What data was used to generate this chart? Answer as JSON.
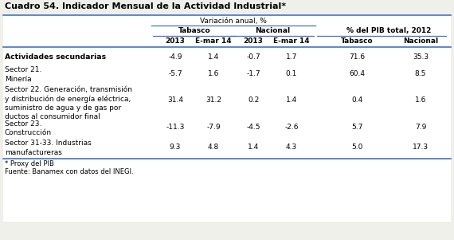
{
  "title": "Cuadro 54. Indicador Mensual de la Actividad Industrial*",
  "header1": "Variación anual, %",
  "header2_tabasco": "Tabasco",
  "header2_nacional": "Nacional",
  "header2_pib": "% del PIB total, 2012",
  "col_headers": [
    "2013",
    "E-mar 14",
    "2013",
    "E-mar 14",
    "Tabasco",
    "Nacional"
  ],
  "rows": [
    {
      "label": "Actividades secundarias",
      "bold": true,
      "values": [
        "-4.9",
        "1.4",
        "-0.7",
        "1.7",
        "71.6",
        "35.3"
      ],
      "label_lines": 1
    },
    {
      "label": "Sector 21.\nMinería",
      "bold": false,
      "values": [
        "-5.7",
        "1.6",
        "-1.7",
        "0.1",
        "60.4",
        "8.5"
      ],
      "label_lines": 2
    },
    {
      "label": "Sector 22. Generación, transmisión\ny distribución de energía eléctrica,\nsuministro de agua y de gas por\nductos al consumidor final",
      "bold": false,
      "values": [
        "31.4",
        "31.2",
        "0.2",
        "1.4",
        "0.4",
        "1.6"
      ],
      "label_lines": 4
    },
    {
      "label": "Sector 23.\nConstrucción",
      "bold": false,
      "values": [
        "-11.3",
        "-7.9",
        "-4.5",
        "-2.6",
        "5.7",
        "7.9"
      ],
      "label_lines": 2
    },
    {
      "label": "Sector 31-33. Industrias\nmanufactureras",
      "bold": false,
      "values": [
        "9.3",
        "4.8",
        "1.4",
        "4.3",
        "5.0",
        "17.3"
      ],
      "label_lines": 2
    }
  ],
  "footnote1": "* Proxy del PIB",
  "footnote2": "Fuente: Banamex con datos del INEGI.",
  "bg_color": "#f0f0eb",
  "table_bg": "#ffffff",
  "line_color": "#4472c4",
  "text_color": "#000000",
  "font_size": 6.5,
  "title_font_size": 8.0
}
